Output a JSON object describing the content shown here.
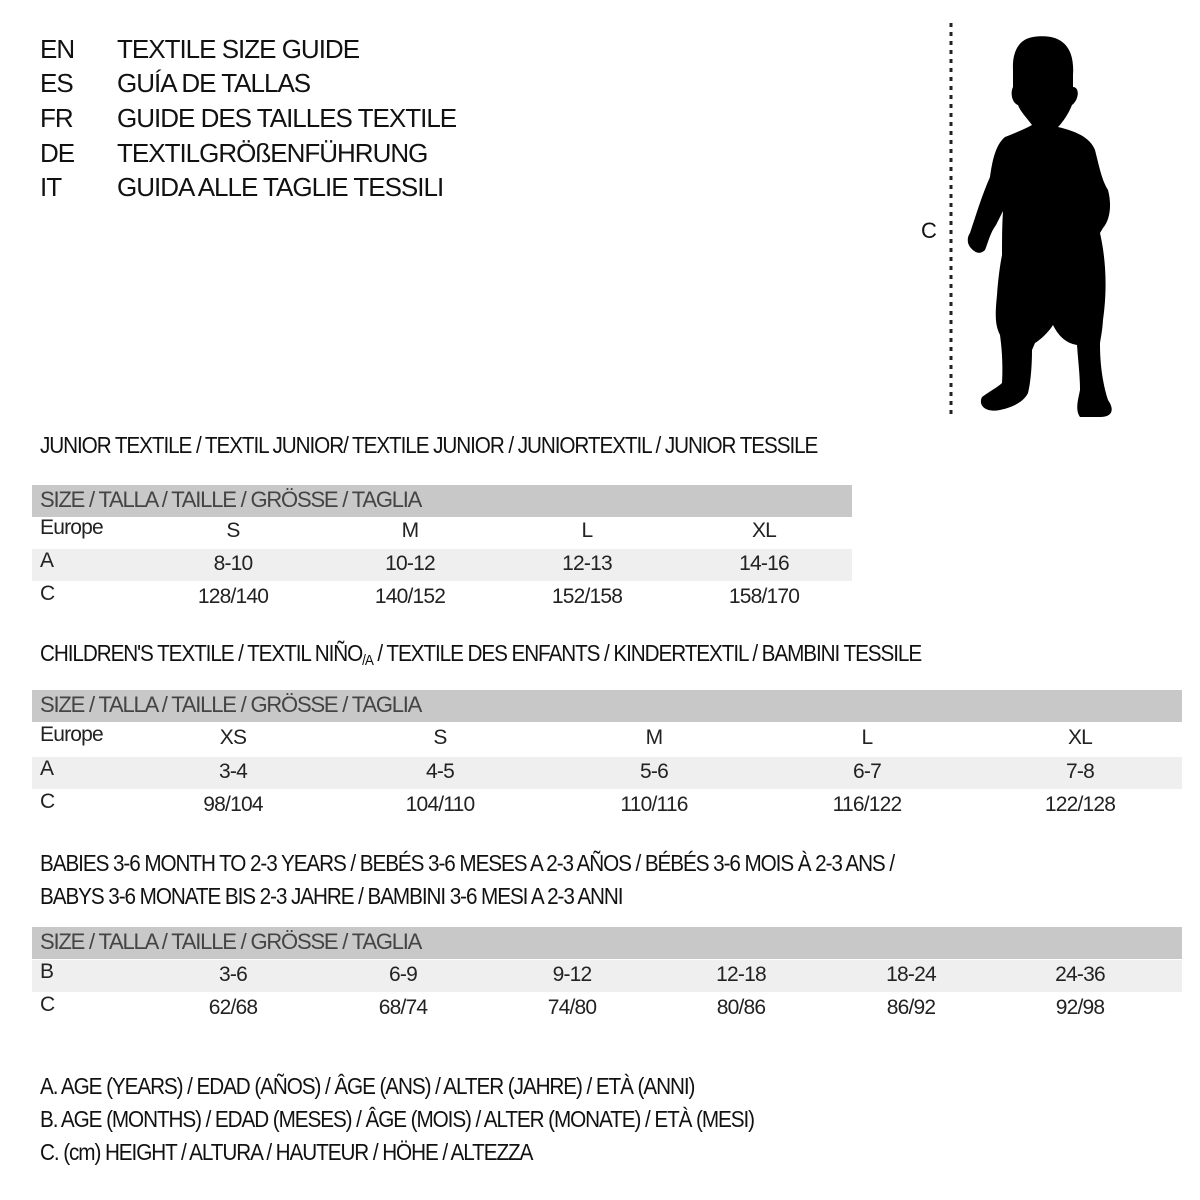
{
  "header": {
    "languages": [
      {
        "code": "EN",
        "title": "TEXTILE SIZE GUIDE"
      },
      {
        "code": "ES",
        "title": "GUÍA DE TALLAS"
      },
      {
        "code": "FR",
        "title": "GUIDE DES TAILLES TEXTILE"
      },
      {
        "code": "DE",
        "title": "TEXTILGRÖßENFÜHRUNG"
      },
      {
        "code": "IT",
        "title": "GUIDA ALLE TAGLIE TESSILI"
      }
    ]
  },
  "figure": {
    "measure_label": "C",
    "icon": "child-silhouette"
  },
  "size_header": "SIZE / TALLA / TAILLE / GRÖSSE / TAGLIA",
  "junior": {
    "title": "JUNIOR TEXTILE / TEXTIL JUNIOR/ TEXTILE JUNIOR / JUNIORTEXTIL / JUNIOR TESSILE",
    "rows": [
      {
        "label": "Europe",
        "values": [
          "S",
          "M",
          "L",
          "XL"
        ]
      },
      {
        "label": "A",
        "values": [
          "8-10",
          "10-12",
          "12-13",
          "14-16"
        ]
      },
      {
        "label": "C",
        "values": [
          "128/140",
          "140/152",
          "152/158",
          "158/170"
        ]
      }
    ]
  },
  "children": {
    "title_a": "CHILDREN'S TEXTILE / TEXTIL NIÑO",
    "title_sub": "/A",
    "title_b": " / TEXTILE DES ENFANTS / KINDERTEXTIL / BAMBINI TESSILE",
    "rows": [
      {
        "label": "Europe",
        "values": [
          "XS",
          "S",
          "M",
          "L",
          "XL"
        ]
      },
      {
        "label": "A",
        "values": [
          "3-4",
          "4-5",
          "5-6",
          "6-7",
          "7-8"
        ]
      },
      {
        "label": "C",
        "values": [
          "98/104",
          "104/110",
          "110/116",
          "116/122",
          "122/128"
        ]
      }
    ]
  },
  "babies": {
    "title_line1": "BABIES 3-6 MONTH TO 2-3 YEARS / BEBÉS 3-6 MESES A 2-3 AÑOS / BÉBÉS 3-6 MOIS À 2-3 ANS /",
    "title_line2": "BABYS 3-6 MONATE BIS 2-3 JAHRE / BAMBINI 3-6 MESI A 2-3 ANNI",
    "rows": [
      {
        "label": "B",
        "values": [
          "3-6",
          "6-9",
          "9-12",
          "12-18",
          "18-24",
          "24-36"
        ]
      },
      {
        "label": "C",
        "values": [
          "62/68",
          "68/74",
          "74/80",
          "80/86",
          "86/92",
          "92/98"
        ]
      }
    ]
  },
  "legend": [
    "A. AGE (YEARS) / EDAD (AÑOS) / ÂGE (ANS) / ALTER (JAHRE) / ETÀ (ANNI)",
    "B. AGE (MONTHS) / EDAD (MESES) / ÂGE (MOIS) / ALTER (MONATE) / ETÀ (MESI)",
    "C. (cm) HEIGHT / ALTURA / HAUTEUR / HÖHE / ALTEZZA"
  ],
  "colors": {
    "header_bar": "#c8c8c8",
    "alt_row": "#efefef",
    "text": "#111111"
  }
}
